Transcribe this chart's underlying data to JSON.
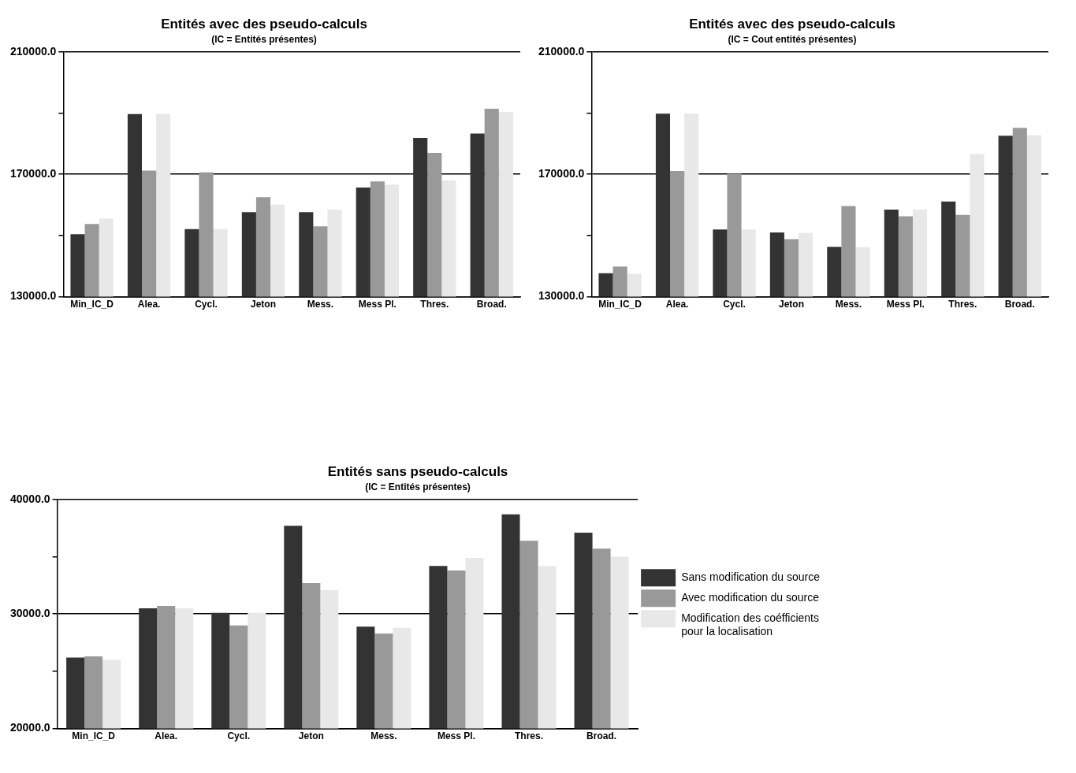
{
  "chart_data": [
    {
      "type": "bar",
      "title": "Entités avec des pseudo-calculs",
      "subtitle": "(IC = Entités présentes)",
      "categories": [
        "Min_IC_D",
        "Alea.",
        "Cycl.",
        "Jeton",
        "Mess.",
        "Mess Pl.",
        "Thres.",
        "Broad."
      ],
      "series": [
        {
          "color": "#333333",
          "values": [
            150400,
            189700,
            152100,
            157600,
            157600,
            165700,
            181900,
            183300
          ]
        },
        {
          "color": "#999999",
          "values": [
            153800,
            171200,
            170600,
            162500,
            153000,
            167700,
            177000,
            191400
          ]
        },
        {
          "color": "#e8e8e8",
          "values": [
            155500,
            189700,
            152100,
            160100,
            158500,
            166600,
            168000,
            190300
          ]
        }
      ],
      "ylim": [
        130000,
        210000
      ],
      "yticks": [
        {
          "value": 130000,
          "label": "130000.0"
        },
        {
          "value": 150000,
          "label": null
        },
        {
          "value": 170000,
          "label": "170000.0"
        },
        {
          "value": 190000,
          "label": null
        },
        {
          "value": 210000,
          "label": "210000.0"
        }
      ],
      "grid": "y",
      "legend": false
    },
    {
      "type": "bar",
      "title": "Entités avec des pseudo-calculs",
      "subtitle": "(IC = Cout entités présentes)",
      "categories": [
        "Min_IC_D",
        "Alea.",
        "Cycl.",
        "Jeton",
        "Mess.",
        "Mess Pl.",
        "Thres.",
        "Broad."
      ],
      "series": [
        {
          "color": "#333333",
          "values": [
            137700,
            189800,
            152000,
            151000,
            146300,
            158500,
            161100,
            182600
          ]
        },
        {
          "color": "#999999",
          "values": [
            139900,
            171100,
            170200,
            148800,
            159600,
            156300,
            156700,
            185200
          ]
        },
        {
          "color": "#e8e8e8",
          "values": [
            137500,
            189800,
            152000,
            150800,
            146200,
            158500,
            176700,
            182800
          ]
        }
      ],
      "ylim": [
        130000,
        210000
      ],
      "yticks": [
        {
          "value": 130000,
          "label": "130000.0"
        },
        {
          "value": 150000,
          "label": null
        },
        {
          "value": 170000,
          "label": "170000.0"
        },
        {
          "value": 190000,
          "label": null
        },
        {
          "value": 210000,
          "label": "210000.0"
        }
      ],
      "grid": "y",
      "legend": false
    },
    {
      "type": "bar",
      "title": "Entités sans pseudo-calculs",
      "subtitle": "(IC = Entités présentes)",
      "categories": [
        "Min_IC_D",
        "Alea.",
        "Cycl.",
        "Jeton",
        "Mess.",
        "Mess Pl.",
        "Thres.",
        "Broad."
      ],
      "series": [
        {
          "name": "Sans modification du source",
          "color": "#333333",
          "values": [
            26200,
            30500,
            30100,
            37700,
            28900,
            34200,
            38700,
            37100
          ]
        },
        {
          "name": "Avec modification du source",
          "color": "#999999",
          "values": [
            26300,
            30700,
            29000,
            32700,
            28300,
            33800,
            36400,
            35700
          ]
        },
        {
          "name": "Modification des coéfficients pour la localisation",
          "color": "#e8e8e8",
          "values": [
            26000,
            30500,
            30100,
            32100,
            28800,
            34900,
            34200,
            35000
          ]
        }
      ],
      "ylim": [
        20000,
        40000
      ],
      "yticks": [
        {
          "value": 20000,
          "label": "20000.0"
        },
        {
          "value": 25000,
          "label": null
        },
        {
          "value": 30000,
          "label": "30000.0"
        },
        {
          "value": 35000,
          "label": null
        },
        {
          "value": 40000,
          "label": "40000.0"
        }
      ],
      "grid": "y",
      "legend": "right"
    }
  ]
}
